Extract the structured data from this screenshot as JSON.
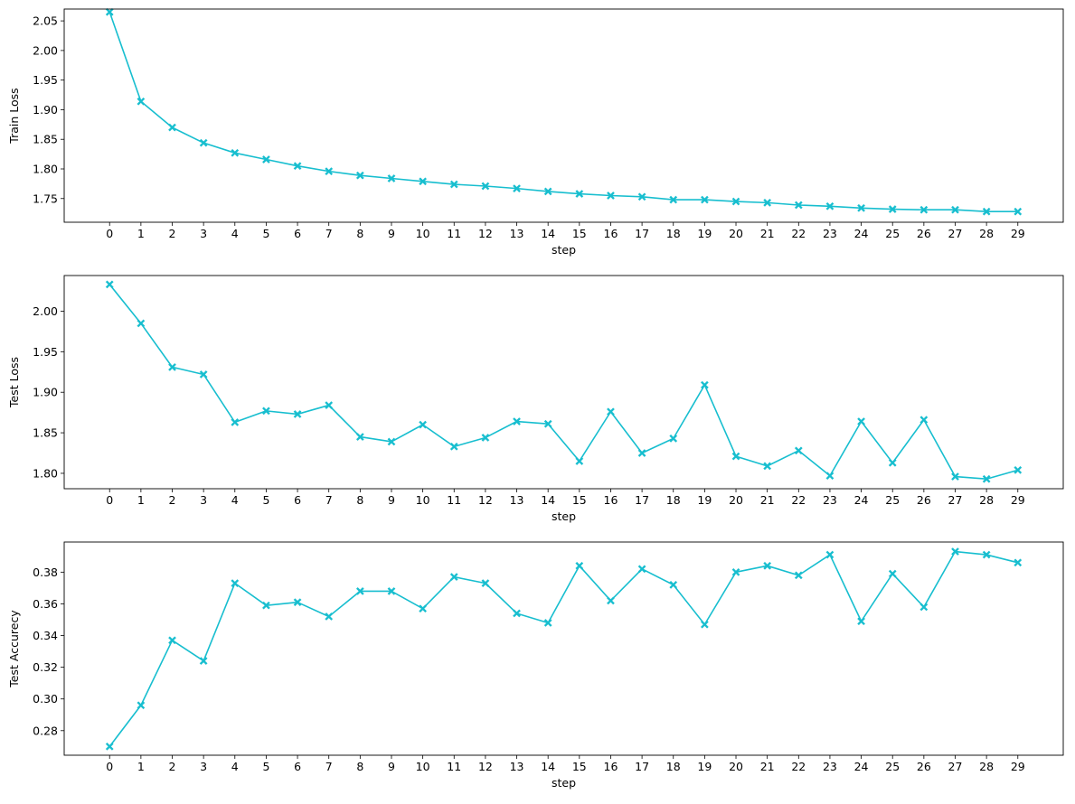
{
  "chart_data": [
    {
      "type": "line",
      "xlabel": "step",
      "ylabel": "Train Loss",
      "x": [
        0,
        1,
        2,
        3,
        4,
        5,
        6,
        7,
        8,
        9,
        10,
        11,
        12,
        13,
        14,
        15,
        16,
        17,
        18,
        19,
        20,
        21,
        22,
        23,
        24,
        25,
        26,
        27,
        28,
        29
      ],
      "ylim": [
        1.71,
        2.07
      ],
      "yticks": [
        1.75,
        1.8,
        1.85,
        1.9,
        1.95,
        2.0,
        2.05
      ],
      "ytick_labels": [
        "1.75",
        "1.80",
        "1.85",
        "1.90",
        "1.95",
        "2.00",
        "2.05"
      ],
      "series": [
        {
          "values": [
            2.065,
            1.914,
            1.87,
            1.844,
            1.827,
            1.816,
            1.805,
            1.796,
            1.789,
            1.784,
            1.779,
            1.774,
            1.771,
            1.767,
            1.762,
            1.758,
            1.755,
            1.753,
            1.748,
            1.748,
            1.745,
            1.743,
            1.739,
            1.737,
            1.734,
            1.732,
            1.731,
            1.731,
            1.728,
            1.728
          ]
        }
      ],
      "grid": false,
      "marker": "X",
      "color": "#17becf"
    },
    {
      "type": "line",
      "xlabel": "step",
      "ylabel": "Test Loss",
      "x": [
        0,
        1,
        2,
        3,
        4,
        5,
        6,
        7,
        8,
        9,
        10,
        11,
        12,
        13,
        14,
        15,
        16,
        17,
        18,
        19,
        20,
        21,
        22,
        23,
        24,
        25,
        26,
        27,
        28,
        29
      ],
      "ylim": [
        1.781,
        2.044
      ],
      "yticks": [
        1.8,
        1.85,
        1.9,
        1.95,
        2.0
      ],
      "ytick_labels": [
        "1.80",
        "1.85",
        "1.90",
        "1.95",
        "2.00"
      ],
      "series": [
        {
          "values": [
            2.033,
            1.985,
            1.931,
            1.922,
            1.863,
            1.877,
            1.873,
            1.884,
            1.845,
            1.839,
            1.86,
            1.833,
            1.844,
            1.864,
            1.861,
            1.815,
            1.876,
            1.825,
            1.843,
            1.909,
            1.821,
            1.809,
            1.828,
            1.797,
            1.864,
            1.813,
            1.866,
            1.796,
            1.793,
            1.804
          ]
        }
      ],
      "grid": false,
      "marker": "X",
      "color": "#17becf"
    },
    {
      "type": "line",
      "xlabel": "step",
      "ylabel": "Test Accurecy",
      "x": [
        0,
        1,
        2,
        3,
        4,
        5,
        6,
        7,
        8,
        9,
        10,
        11,
        12,
        13,
        14,
        15,
        16,
        17,
        18,
        19,
        20,
        21,
        22,
        23,
        24,
        25,
        26,
        27,
        28,
        29
      ],
      "ylim": [
        0.2645,
        0.399
      ],
      "yticks": [
        0.28,
        0.3,
        0.32,
        0.34,
        0.36,
        0.38
      ],
      "ytick_labels": [
        "0.28",
        "0.30",
        "0.32",
        "0.34",
        "0.36",
        "0.38"
      ],
      "series": [
        {
          "values": [
            0.27,
            0.296,
            0.337,
            0.324,
            0.373,
            0.359,
            0.361,
            0.352,
            0.368,
            0.368,
            0.357,
            0.377,
            0.373,
            0.354,
            0.348,
            0.384,
            0.362,
            0.382,
            0.372,
            0.347,
            0.38,
            0.384,
            0.378,
            0.391,
            0.349,
            0.379,
            0.358,
            0.393,
            0.391,
            0.386
          ]
        }
      ],
      "grid": false,
      "marker": "X",
      "color": "#17becf"
    }
  ]
}
